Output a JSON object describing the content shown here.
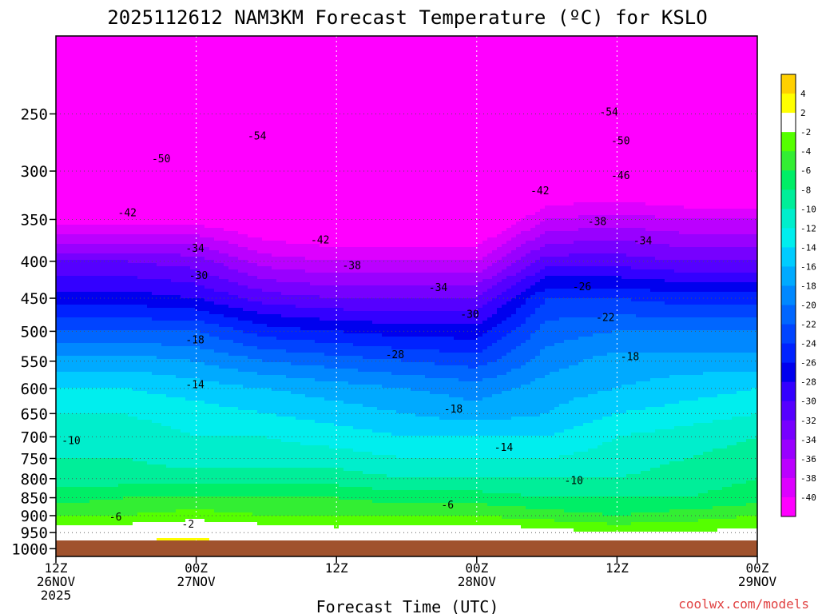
{
  "chart_data": {
    "type": "heatmap",
    "title": "2025112612 NAM3KM Forecast Temperature (ºC) for KSLO",
    "xlabel": "Forecast Time (UTC)",
    "ylabel": "",
    "credit": "coolwx.com/models",
    "y_axis": {
      "scale": "log-pressure",
      "range_hpa": [
        1025,
        195
      ],
      "ticks": [
        "250",
        "300",
        "350",
        "400",
        "450",
        "500",
        "550",
        "600",
        "650",
        "700",
        "750",
        "800",
        "850",
        "900",
        "950",
        "1000"
      ]
    },
    "x_axis": {
      "range_hours": [
        0,
        60
      ],
      "ticks": [
        {
          "hour": 0,
          "line1": "12Z",
          "line2": "26NOV",
          "line3": "2025"
        },
        {
          "hour": 12,
          "line1": "00Z",
          "line2": "27NOV",
          "line3": ""
        },
        {
          "hour": 24,
          "line1": "12Z",
          "line2": "",
          "line3": ""
        },
        {
          "hour": 36,
          "line1": "00Z",
          "line2": "28NOV",
          "line3": ""
        },
        {
          "hour": 48,
          "line1": "12Z",
          "line2": "",
          "line3": ""
        },
        {
          "hour": 60,
          "line1": "00Z",
          "line2": "29NOV",
          "line3": ""
        }
      ]
    },
    "colorbar": {
      "labels": [
        "4",
        "2",
        "-2",
        "-4",
        "-6",
        "-8",
        "-10",
        "-12",
        "-14",
        "-16",
        "-18",
        "-20",
        "-22",
        "-24",
        "-26",
        "-28",
        "-30",
        "-32",
        "-34",
        "-36",
        "-38",
        "-40"
      ],
      "bins": [
        {
          "lo": 4,
          "hi": 6,
          "color": "#ffd000"
        },
        {
          "lo": 2,
          "hi": 4,
          "color": "#ffff00"
        },
        {
          "lo": -2,
          "hi": 2,
          "color": "#ffffff"
        },
        {
          "lo": -4,
          "hi": -2,
          "color": "#55ff00"
        },
        {
          "lo": -6,
          "hi": -4,
          "color": "#33ee33"
        },
        {
          "lo": -8,
          "hi": -6,
          "color": "#00ee66"
        },
        {
          "lo": -10,
          "hi": -8,
          "color": "#00ee99"
        },
        {
          "lo": -12,
          "hi": -10,
          "color": "#00eecc"
        },
        {
          "lo": -14,
          "hi": -12,
          "color": "#00eeee"
        },
        {
          "lo": -16,
          "hi": -14,
          "color": "#00ccff"
        },
        {
          "lo": -18,
          "hi": -16,
          "color": "#00aaff"
        },
        {
          "lo": -20,
          "hi": -18,
          "color": "#0088ff"
        },
        {
          "lo": -22,
          "hi": -20,
          "color": "#0066ff"
        },
        {
          "lo": -24,
          "hi": -22,
          "color": "#0044ff"
        },
        {
          "lo": -26,
          "hi": -24,
          "color": "#0022ff"
        },
        {
          "lo": -28,
          "hi": -26,
          "color": "#0000ee"
        },
        {
          "lo": -30,
          "hi": -28,
          "color": "#3300ff"
        },
        {
          "lo": -32,
          "hi": -30,
          "color": "#5500ff"
        },
        {
          "lo": -34,
          "hi": -32,
          "color": "#7700ff"
        },
        {
          "lo": -36,
          "hi": -34,
          "color": "#9900ff"
        },
        {
          "lo": -38,
          "hi": -36,
          "color": "#bb00ff"
        },
        {
          "lo": -40,
          "hi": -38,
          "color": "#dd00ff"
        },
        {
          "lo": -60,
          "hi": -40,
          "color": "#ff00ff"
        }
      ]
    },
    "profile_times_hours": [
      0,
      6,
      12,
      18,
      24,
      30,
      36,
      42,
      48,
      54,
      60
    ],
    "profile_levels_hpa": [
      1000,
      950,
      900,
      850,
      800,
      750,
      700,
      650,
      600,
      550,
      500,
      450,
      400,
      350,
      300,
      250,
      200
    ],
    "temperature_profiles": [
      [
        3,
        0,
        -4,
        -7,
        -9,
        -10,
        -11,
        -12,
        -14,
        -17,
        -22,
        -27,
        -32,
        -41,
        -49,
        -54,
        -55
      ],
      [
        4,
        0,
        -4,
        -6,
        -9,
        -10,
        -11,
        -12,
        -14,
        -17,
        -22,
        -27,
        -32,
        -41,
        -49,
        -54,
        -57
      ],
      [
        4,
        1,
        -3,
        -6,
        -9,
        -11,
        -12,
        -13,
        -15,
        -18,
        -22,
        -28,
        -33,
        -41,
        -49,
        -54,
        -58
      ],
      [
        2,
        0,
        -4,
        -6,
        -9,
        -11,
        -12,
        -14,
        -16,
        -20,
        -25,
        -31,
        -37,
        -43,
        -50,
        -54,
        -56
      ],
      [
        1,
        -1,
        -4,
        -6,
        -9,
        -11,
        -13,
        -15,
        -17,
        -21,
        -26,
        -32,
        -38,
        -44,
        -50,
        -54,
        -56
      ],
      [
        3,
        0,
        -4,
        -7,
        -10,
        -12,
        -14,
        -16,
        -18,
        -22,
        -27,
        -32,
        -38,
        -44,
        -50,
        -54,
        -56
      ],
      [
        3,
        0,
        -4,
        -7,
        -10,
        -12,
        -14,
        -17,
        -19,
        -23,
        -27,
        -32,
        -38,
        -44,
        -49,
        -54,
        -56
      ],
      [
        1,
        -1,
        -5,
        -8,
        -10,
        -12,
        -14,
        -16,
        -17,
        -19,
        -21,
        -24,
        -31,
        -38,
        -45,
        -50,
        -55
      ],
      [
        0,
        -2,
        -6,
        -8,
        -10,
        -11,
        -12,
        -14,
        -16,
        -17,
        -20,
        -24,
        -31,
        -37,
        -45,
        -50,
        -55
      ],
      [
        1,
        -2,
        -5,
        -8,
        -9,
        -10,
        -11,
        -13,
        -15,
        -17,
        -20,
        -25,
        -32,
        -38,
        -46,
        -50,
        -55
      ],
      [
        1,
        -1,
        -4,
        -7,
        -8,
        -9,
        -10,
        -12,
        -14,
        -17,
        -20,
        -25,
        -32,
        -38,
        -46,
        -50,
        -55
      ]
    ],
    "contour_labels": [
      {
        "text": "-54",
        "hour": 17.2,
        "hpa": 268
      },
      {
        "text": "-50",
        "hour": 9.0,
        "hpa": 288
      },
      {
        "text": "-42",
        "hour": 6.1,
        "hpa": 342
      },
      {
        "text": "-34",
        "hour": 11.9,
        "hpa": 383
      },
      {
        "text": "-30",
        "hour": 12.2,
        "hpa": 418
      },
      {
        "text": "-42",
        "hour": 22.6,
        "hpa": 373
      },
      {
        "text": "-38",
        "hour": 25.3,
        "hpa": 405
      },
      {
        "text": "-34",
        "hour": 32.7,
        "hpa": 434
      },
      {
        "text": "-30",
        "hour": 35.4,
        "hpa": 473
      },
      {
        "text": "-28",
        "hour": 29.0,
        "hpa": 538
      },
      {
        "text": "-18",
        "hour": 11.9,
        "hpa": 513
      },
      {
        "text": "-14",
        "hour": 11.9,
        "hpa": 592
      },
      {
        "text": "-18",
        "hour": 34.0,
        "hpa": 640
      },
      {
        "text": "-14",
        "hour": 38.3,
        "hpa": 723
      },
      {
        "text": "-10",
        "hour": 1.3,
        "hpa": 707
      },
      {
        "text": "-10",
        "hour": 44.3,
        "hpa": 804
      },
      {
        "text": "-6",
        "hour": 33.5,
        "hpa": 868
      },
      {
        "text": "-6",
        "hour": 5.1,
        "hpa": 902
      },
      {
        "text": "-2",
        "hour": 11.3,
        "hpa": 923
      },
      {
        "text": "-54",
        "hour": 47.3,
        "hpa": 248
      },
      {
        "text": "-50",
        "hour": 48.3,
        "hpa": 272
      },
      {
        "text": "-46",
        "hour": 48.3,
        "hpa": 304
      },
      {
        "text": "-42",
        "hour": 41.4,
        "hpa": 319
      },
      {
        "text": "-38",
        "hour": 46.3,
        "hpa": 352
      },
      {
        "text": "-34",
        "hour": 50.2,
        "hpa": 374
      },
      {
        "text": "-26",
        "hour": 45.0,
        "hpa": 433
      },
      {
        "text": "-22",
        "hour": 47.0,
        "hpa": 478
      },
      {
        "text": "-18",
        "hour": 49.1,
        "hpa": 541
      }
    ]
  }
}
